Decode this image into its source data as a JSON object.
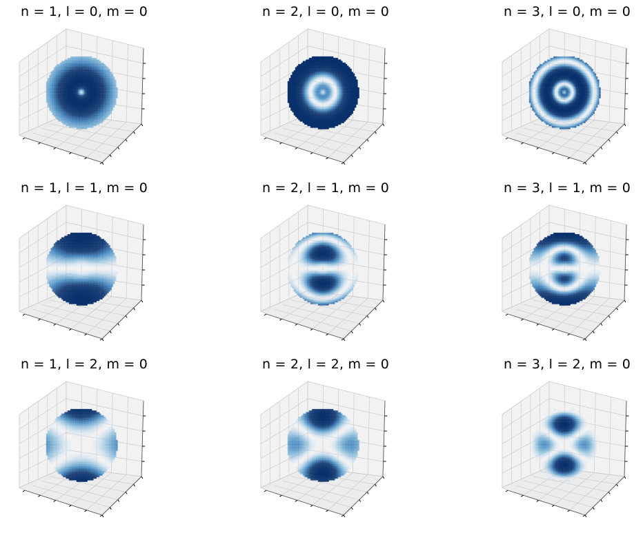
{
  "colors": {
    "pane": "#f2f2f2",
    "pane_edge": "#c8c8c8",
    "grid": "#d0d0d0",
    "tick": "#000000",
    "colormap": "Blues",
    "dark": "#08306b",
    "mid": "#4292c6",
    "light": "#c6dbef",
    "faint": "#eff5fb"
  },
  "chart_data": [
    {
      "type": "scatter",
      "subtype": "3d",
      "title": "n = 1, l = 0, m = 0",
      "n": 1,
      "l": 0,
      "m": 0,
      "colormap": "Blues",
      "grid": true,
      "tick_labels": false
    },
    {
      "type": "scatter",
      "subtype": "3d",
      "title": "n = 2, l = 0, m = 0",
      "n": 2,
      "l": 0,
      "m": 0,
      "colormap": "Blues",
      "grid": true,
      "tick_labels": false
    },
    {
      "type": "scatter",
      "subtype": "3d",
      "title": "n = 3, l = 0, m = 0",
      "n": 3,
      "l": 0,
      "m": 0,
      "colormap": "Blues",
      "grid": true,
      "tick_labels": false
    },
    {
      "type": "scatter",
      "subtype": "3d",
      "title": "n = 1, l = 1, m = 0",
      "n": 1,
      "l": 1,
      "m": 0,
      "colormap": "Blues",
      "grid": true,
      "tick_labels": false
    },
    {
      "type": "scatter",
      "subtype": "3d",
      "title": "n = 2, l = 1, m = 0",
      "n": 2,
      "l": 1,
      "m": 0,
      "colormap": "Blues",
      "grid": true,
      "tick_labels": false
    },
    {
      "type": "scatter",
      "subtype": "3d",
      "title": "n = 3, l = 1, m = 0",
      "n": 3,
      "l": 1,
      "m": 0,
      "colormap": "Blues",
      "grid": true,
      "tick_labels": false
    },
    {
      "type": "scatter",
      "subtype": "3d",
      "title": "n = 1, l = 2, m = 0",
      "n": 1,
      "l": 2,
      "m": 0,
      "colormap": "Blues",
      "grid": true,
      "tick_labels": false
    },
    {
      "type": "scatter",
      "subtype": "3d",
      "title": "n = 2, l = 2, m = 0",
      "n": 2,
      "l": 2,
      "m": 0,
      "colormap": "Blues",
      "grid": true,
      "tick_labels": false
    },
    {
      "type": "scatter",
      "subtype": "3d",
      "title": "n = 3, l = 2, m = 0",
      "n": 3,
      "l": 2,
      "m": 0,
      "colormap": "Blues",
      "grid": true,
      "tick_labels": false
    }
  ]
}
